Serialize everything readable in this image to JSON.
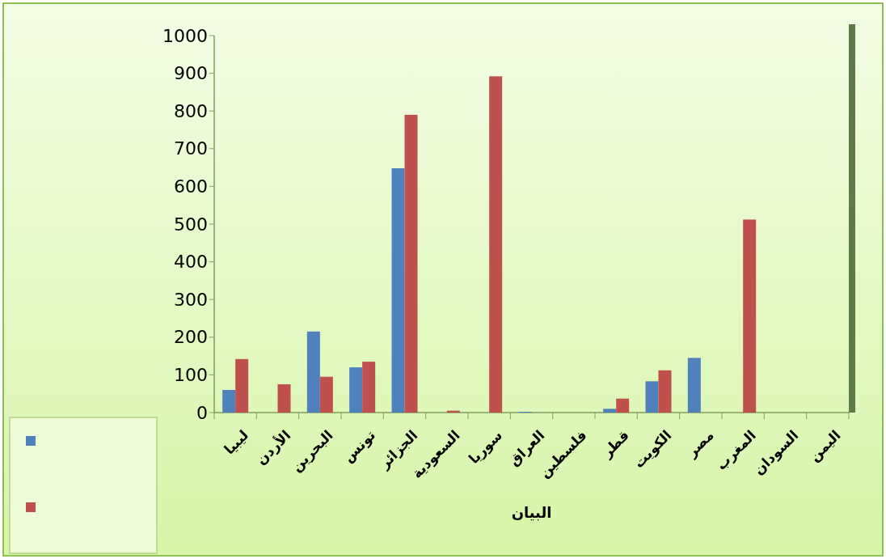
{
  "chart_data": {
    "type": "bar",
    "categories": [
      "ليبيا",
      "الأردن",
      "البحرين",
      "تونس",
      "الجزائر",
      "السعودية",
      "سوريا",
      "العراق",
      "فلسطين",
      "قطر",
      "الكويت",
      "مصر",
      "المغرب",
      "السودان",
      "اليمن"
    ],
    "xlabel": "البيان",
    "series": [
      {
        "color": "#4f81bd",
        "values": [
          60,
          0,
          215,
          120,
          648,
          0,
          0,
          2,
          0,
          10,
          83,
          145,
          0,
          0,
          0
        ]
      },
      {
        "color": "#c0504d",
        "values": [
          142,
          75,
          95,
          135,
          790,
          5,
          892,
          0,
          0,
          37,
          112,
          0,
          512,
          0,
          0
        ]
      }
    ],
    "ylim": [
      0,
      1000
    ],
    "yticks": [
      0,
      100,
      200,
      300,
      400,
      500,
      600,
      700,
      800,
      900,
      1000
    ],
    "grid": false
  }
}
